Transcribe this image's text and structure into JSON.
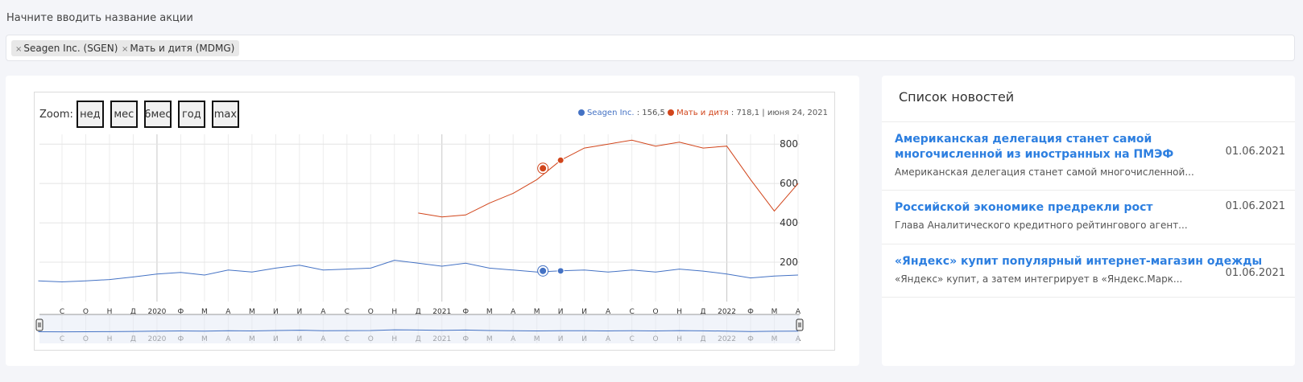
{
  "search": {
    "label": "Начните вводить название акции",
    "chips": [
      {
        "label": "Seagen Inc. (SGEN)"
      },
      {
        "label": "Мать и дитя (MDMG)"
      }
    ]
  },
  "chart": {
    "zoom_label": "Zoom:",
    "zoom_buttons": [
      "нед",
      "мес",
      "6мес",
      "год",
      "max"
    ],
    "legend": {
      "series1_name": "Seagen Inc.",
      "series1_value": ": 156,5",
      "series2_name": "Мать и дитя",
      "series2_value": ": 718,1",
      "date": "| июня 24, 2021"
    }
  },
  "chart_data": {
    "type": "line",
    "x_ticks": [
      "С",
      "О",
      "Н",
      "Д",
      "2020",
      "Ф",
      "М",
      "А",
      "М",
      "И",
      "И",
      "А",
      "С",
      "О",
      "Н",
      "Д",
      "2021",
      "Ф",
      "М",
      "А",
      "М",
      "И",
      "И",
      "А",
      "С",
      "О",
      "Н",
      "Д",
      "2022",
      "Ф",
      "М",
      "А"
    ],
    "y_ticks": [
      200,
      400,
      600,
      800
    ],
    "ylim": [
      0,
      850
    ],
    "grid": true,
    "legend_position": "top-right",
    "series": [
      {
        "name": "Seagen Inc.",
        "color": "#4472c4",
        "x": [
          "2019-08",
          "2019-09",
          "2019-10",
          "2019-11",
          "2019-12",
          "2020-01",
          "2020-02",
          "2020-03",
          "2020-04",
          "2020-05",
          "2020-06",
          "2020-07",
          "2020-08",
          "2020-09",
          "2020-10",
          "2020-11",
          "2020-12",
          "2021-01",
          "2021-02",
          "2021-03",
          "2021-04",
          "2021-05",
          "2021-06",
          "2021-07",
          "2021-08",
          "2021-09",
          "2021-10",
          "2021-11",
          "2021-12",
          "2022-01",
          "2022-02",
          "2022-03",
          "2022-04"
        ],
        "values": [
          105,
          100,
          105,
          112,
          125,
          140,
          148,
          135,
          160,
          150,
          170,
          185,
          160,
          165,
          170,
          210,
          195,
          180,
          195,
          170,
          160,
          150,
          156,
          160,
          150,
          160,
          150,
          165,
          155,
          140,
          120,
          130,
          135
        ]
      },
      {
        "name": "Мать и дитя",
        "color": "#d1451b",
        "x": [
          "2020-12",
          "2021-01",
          "2021-02",
          "2021-03",
          "2021-04",
          "2021-05",
          "2021-06",
          "2021-07",
          "2021-08",
          "2021-09",
          "2021-10",
          "2021-11",
          "2021-12",
          "2022-01",
          "2022-02",
          "2022-03",
          "2022-04"
        ],
        "values": [
          450,
          430,
          440,
          500,
          550,
          620,
          718,
          780,
          800,
          820,
          790,
          810,
          780,
          790,
          620,
          460,
          600
        ]
      }
    ]
  },
  "news": {
    "title": "Список новостей",
    "items": [
      {
        "headline": "Американская делегация станет самой многочисленной из иностранных на ПМЭФ",
        "date": "01.06.2021",
        "summary": "Американская делегация станет самой многочисленной..."
      },
      {
        "headline": "Российской экономике предрекли рост",
        "date": "01.06.2021",
        "summary": "Глава Аналитического кредитного рейтингового агент..."
      },
      {
        "headline": "«Яндекс» купит популярный интернет-магазин одежды",
        "date": "01.06.2021",
        "summary": "«Яндекс» купит, а затем интегрирует в «Яндекс.Марк..."
      }
    ]
  }
}
